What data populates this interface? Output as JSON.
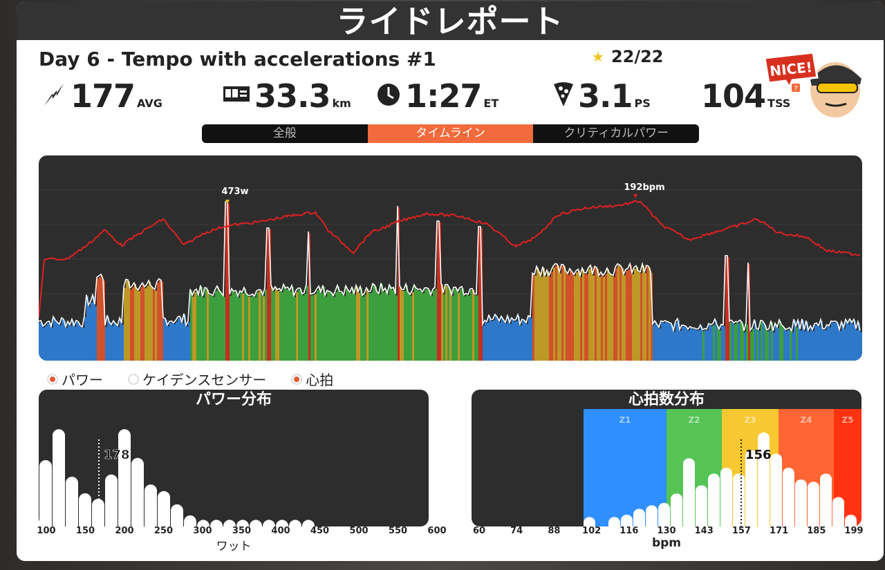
{
  "page_title": "ライドレポート",
  "workout": {
    "title": "Day 6 - Tempo with accelerations #1",
    "stars": "22/22"
  },
  "stats": [
    {
      "icon": "power-bolt-icon",
      "value": "177",
      "unit": "AVG"
    },
    {
      "icon": "odometer-icon",
      "value": "33.3",
      "unit": "km"
    },
    {
      "icon": "clock-icon",
      "value": "1:27",
      "unit": "ET"
    },
    {
      "icon": "pizza-icon",
      "value": "3.1",
      "unit": "PS"
    },
    {
      "icon": "tss-icon",
      "value": "104",
      "unit": "TSS"
    }
  ],
  "mascot": {
    "badge_text": "NICE!"
  },
  "tabs": [
    {
      "label": "全般",
      "active": false
    },
    {
      "label": "タイムライン",
      "active": true
    },
    {
      "label": "クリティカルパワー",
      "active": false
    }
  ],
  "timeline": {
    "peak_power_label": "473w",
    "peak_hr_label": "192bpm",
    "colors": {
      "hr_line": "#e02020",
      "power_line": "#ffffff",
      "z1": "#2f7fd8",
      "z2": "#3fa83f",
      "z3": "#c9a227",
      "z4": "#e0552a",
      "z5": "#d42f1f",
      "base": "#6a6a6a"
    }
  },
  "legend": [
    {
      "label": "パワー",
      "on": true
    },
    {
      "label": "ケイデンスセンサー",
      "on": false
    },
    {
      "label": "心拍",
      "on": true
    }
  ],
  "power_dist": {
    "title": "パワー分布",
    "avg_label": "178",
    "x_ticks": [
      "100",
      "150",
      "200",
      "250",
      "300",
      "350",
      "400",
      "450",
      "500",
      "550",
      "600"
    ],
    "xlabel": "ワット"
  },
  "hr_dist": {
    "title": "心拍数分布",
    "avg_label": "156",
    "zones": [
      "Z1",
      "Z2",
      "Z3",
      "Z4",
      "Z5"
    ],
    "zone_colors": [
      "#2f8fff",
      "#55c455",
      "#f8c832",
      "#ff6633",
      "#ff3311"
    ],
    "x_ticks": [
      "60",
      "74",
      "88",
      "102",
      "116",
      "130",
      "143",
      "157",
      "171",
      "185",
      "199"
    ],
    "xlabel": "bpm"
  }
}
